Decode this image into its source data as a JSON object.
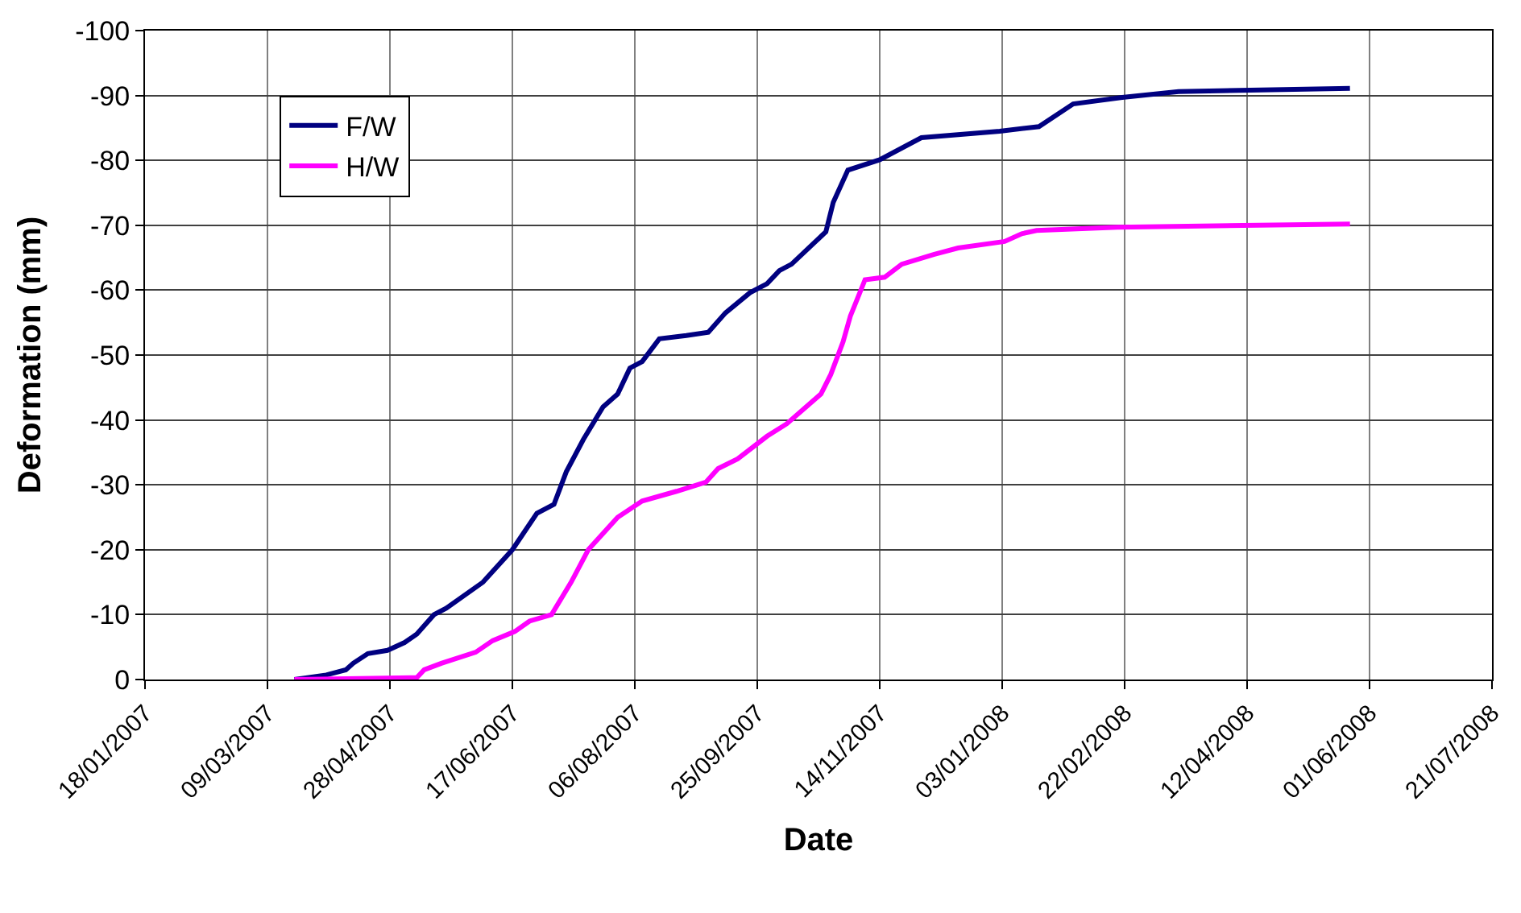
{
  "chart_data": {
    "type": "line",
    "xlabel": "Date",
    "ylabel": "Deformation (mm)",
    "xlim": [
      "2007-01-18",
      "2008-07-21"
    ],
    "xticks": [
      {
        "value": "2007-01-18",
        "label": "18/01/2007"
      },
      {
        "value": "2007-03-09",
        "label": "09/03/2007"
      },
      {
        "value": "2007-04-28",
        "label": "28/04/2007"
      },
      {
        "value": "2007-06-17",
        "label": "17/06/2007"
      },
      {
        "value": "2007-08-06",
        "label": "06/08/2007"
      },
      {
        "value": "2007-09-25",
        "label": "25/09/2007"
      },
      {
        "value": "2007-11-14",
        "label": "14/11/2007"
      },
      {
        "value": "2008-01-03",
        "label": "03/01/2008"
      },
      {
        "value": "2008-02-22",
        "label": "22/02/2008"
      },
      {
        "value": "2008-04-12",
        "label": "12/04/2008"
      },
      {
        "value": "2008-06-01",
        "label": "01/06/2008"
      },
      {
        "value": "2008-07-21",
        "label": "21/07/2008"
      }
    ],
    "ylim": [
      0,
      -100
    ],
    "yticks": [
      0,
      -10,
      -20,
      -30,
      -40,
      -50,
      -60,
      -70,
      -80,
      -90,
      -100
    ],
    "grid": true,
    "legend": "top left",
    "marker": "none",
    "line_style": "solid",
    "series": [
      {
        "name": "F/W",
        "color": "#000080",
        "x": [
          "2007-03-20",
          "2007-04-02",
          "2007-04-10",
          "2007-04-13",
          "2007-04-19",
          "2007-04-27",
          "2007-05-04",
          "2007-05-09",
          "2007-05-16",
          "2007-05-21",
          "2007-06-05",
          "2007-06-17",
          "2007-06-27",
          "2007-07-04",
          "2007-07-09",
          "2007-07-16",
          "2007-07-24",
          "2007-07-30",
          "2007-08-04",
          "2007-08-09",
          "2007-08-16",
          "2007-08-27",
          "2007-09-05",
          "2007-09-12",
          "2007-09-22",
          "2007-09-29",
          "2007-10-04",
          "2007-10-09",
          "2007-10-23",
          "2007-10-26",
          "2007-11-01",
          "2007-11-14",
          "2007-12-01",
          "2008-01-02",
          "2008-01-18",
          "2008-02-01",
          "2008-02-21",
          "2008-03-15",
          "2008-05-24"
        ],
        "values": [
          0,
          -0.7,
          -1.5,
          -2.5,
          -4,
          -4.5,
          -5.7,
          -7,
          -10,
          -11,
          -15,
          -20,
          -25.6,
          -27,
          -32,
          -37,
          -42,
          -44,
          -48,
          -49,
          -52.5,
          -53,
          -53.5,
          -56.5,
          -59.6,
          -61,
          -63,
          -64,
          -69,
          -73.5,
          -78.5,
          -80.1,
          -83.5,
          -84.5,
          -85.2,
          -88.7,
          -89.7,
          -90.6,
          -91.1
        ]
      },
      {
        "name": "H/W",
        "color": "#ff00ff",
        "x": [
          "2007-03-20",
          "2007-05-09",
          "2007-05-12",
          "2007-05-19",
          "2007-06-02",
          "2007-06-09",
          "2007-06-18",
          "2007-06-24",
          "2007-07-03",
          "2007-07-11",
          "2007-07-18",
          "2007-07-30",
          "2007-08-09",
          "2007-08-23",
          "2007-09-04",
          "2007-09-09",
          "2007-09-17",
          "2007-09-29",
          "2007-10-07",
          "2007-10-21",
          "2007-10-25",
          "2007-10-30",
          "2007-11-02",
          "2007-11-08",
          "2007-11-16",
          "2007-11-23",
          "2007-12-06",
          "2007-12-16",
          "2008-01-04",
          "2008-01-11",
          "2008-01-17",
          "2008-02-19",
          "2008-05-24"
        ],
        "values": [
          0,
          -0.3,
          -1.5,
          -2.5,
          -4.2,
          -6,
          -7.4,
          -9,
          -10,
          -15,
          -20,
          -25,
          -27.5,
          -29,
          -30.4,
          -32.5,
          -34,
          -37.5,
          -39.4,
          -44,
          -47,
          -52,
          -56,
          -61.6,
          -62,
          -64,
          -65.5,
          -66.5,
          -67.5,
          -68.7,
          -69.2,
          -69.7,
          -70.2
        ]
      }
    ]
  }
}
